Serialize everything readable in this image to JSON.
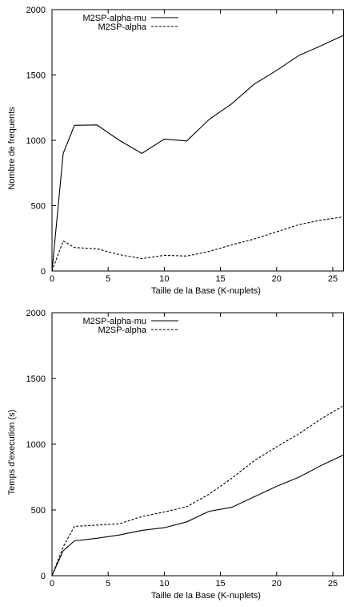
{
  "chart_data": [
    {
      "type": "line",
      "title": "",
      "xlabel": "Taille de la Base (K-nuplets)",
      "ylabel": "Nombre de frequents",
      "xlim": [
        0,
        26
      ],
      "ylim": [
        0,
        2000
      ],
      "xticks": [
        0,
        5,
        10,
        15,
        20,
        25
      ],
      "yticks": [
        0,
        500,
        1000,
        1500,
        2000
      ],
      "grid": false,
      "legend_position": "top-left",
      "series": [
        {
          "name": "M2SP-alpha-mu",
          "style": "solid",
          "color": "#000000",
          "x": [
            0,
            1,
            2,
            4,
            6,
            8,
            10,
            12,
            14,
            16,
            18,
            20,
            22,
            24,
            26
          ],
          "y": [
            0,
            900,
            1115,
            1118,
            1000,
            900,
            1010,
            995,
            1160,
            1280,
            1430,
            1535,
            1650,
            1725,
            1805
          ]
        },
        {
          "name": "M2SP-alpha",
          "style": "dashed",
          "color": "#000000",
          "x": [
            0,
            1,
            2,
            4,
            6,
            8,
            10,
            12,
            14,
            16,
            18,
            20,
            22,
            24,
            26
          ],
          "y": [
            0,
            230,
            180,
            170,
            125,
            95,
            120,
            115,
            150,
            200,
            245,
            300,
            355,
            390,
            415
          ]
        }
      ]
    },
    {
      "type": "line",
      "title": "",
      "xlabel": "Taille de la Base (K-nuplets)",
      "ylabel": "Temps d'execution (s)",
      "xlim": [
        0,
        26
      ],
      "ylim": [
        0,
        2000
      ],
      "xticks": [
        0,
        5,
        10,
        15,
        20,
        25
      ],
      "yticks": [
        0,
        500,
        1000,
        1500,
        2000
      ],
      "grid": false,
      "legend_position": "top-left",
      "series": [
        {
          "name": "M2SP-alpha-mu",
          "style": "solid",
          "color": "#000000",
          "x": [
            0,
            1,
            2,
            4,
            6,
            8,
            10,
            12,
            14,
            16,
            18,
            20,
            22,
            24,
            26
          ],
          "y": [
            0,
            190,
            265,
            285,
            310,
            345,
            365,
            410,
            490,
            520,
            600,
            680,
            750,
            840,
            920
          ]
        },
        {
          "name": "M2SP-alpha",
          "style": "dashed",
          "color": "#000000",
          "x": [
            0,
            1,
            2,
            4,
            6,
            8,
            10,
            12,
            14,
            16,
            18,
            20,
            22,
            24,
            26
          ],
          "y": [
            0,
            220,
            375,
            385,
            395,
            450,
            485,
            525,
            620,
            740,
            875,
            980,
            1080,
            1195,
            1295
          ]
        }
      ]
    }
  ]
}
